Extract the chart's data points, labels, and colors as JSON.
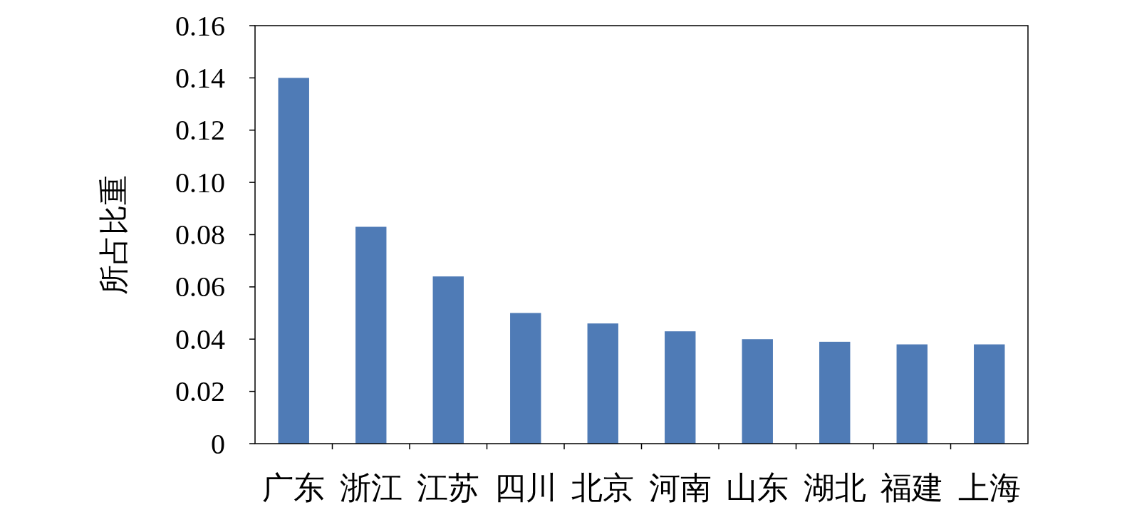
{
  "chart_data": {
    "type": "bar",
    "ylabel": "所占比重",
    "categories": [
      "广东",
      "浙江",
      "江苏",
      "四川",
      "北京",
      "河南",
      "山东",
      "湖北",
      "福建",
      "上海"
    ],
    "values": [
      0.14,
      0.083,
      0.064,
      0.05,
      0.046,
      0.043,
      0.04,
      0.039,
      0.038,
      0.038
    ],
    "color": "#4f7bb6",
    "ylim": [
      0,
      0.16
    ],
    "yticks": [
      0,
      0.02,
      0.04,
      0.06,
      0.08,
      {
        "value": 0.1,
        "label": "0.10"
      },
      0.12,
      0.14,
      0.16
    ]
  }
}
